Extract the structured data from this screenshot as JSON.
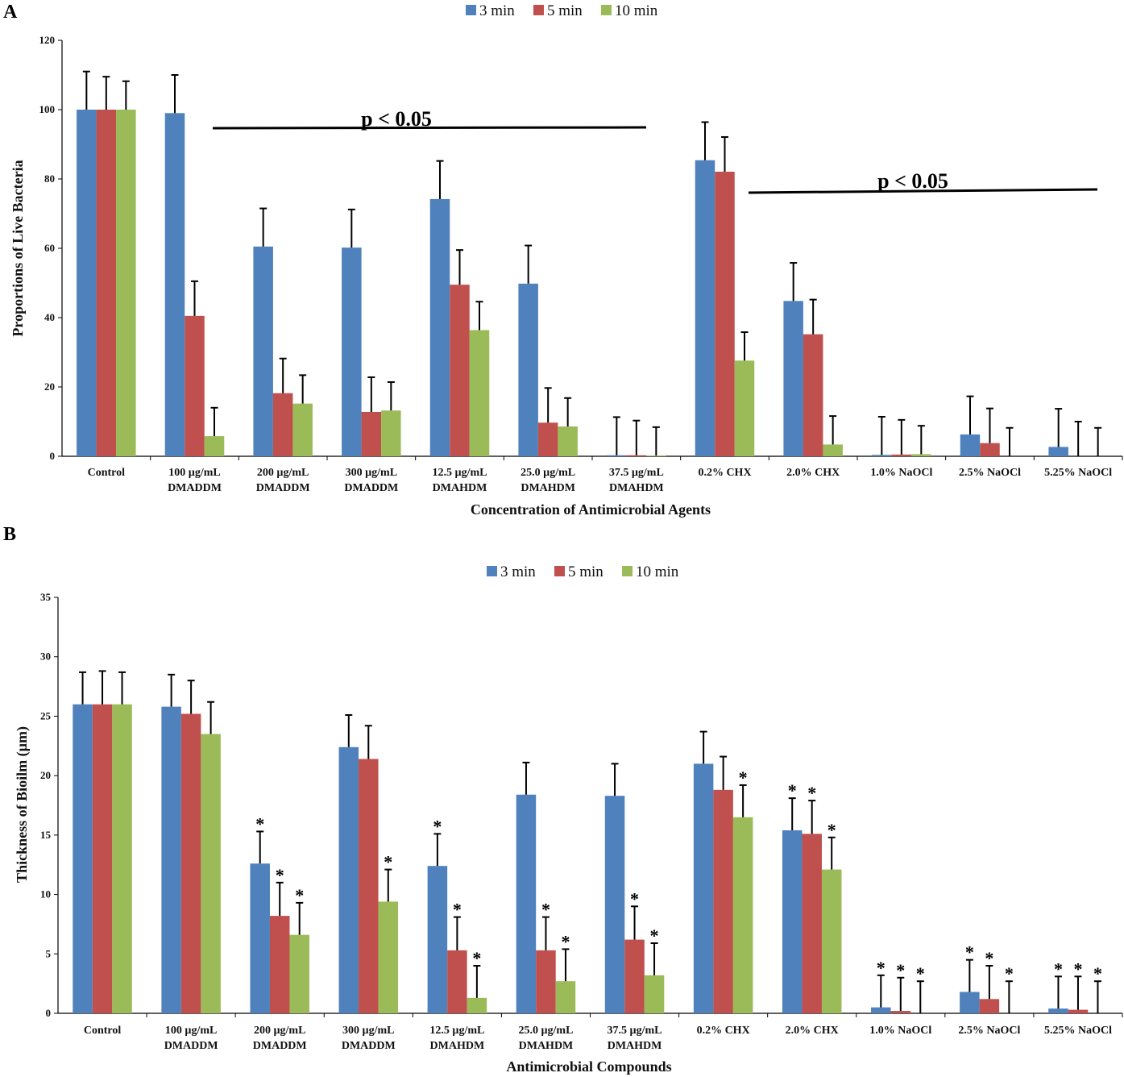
{
  "chart_data": [
    {
      "type": "bar",
      "panel": "A",
      "xlabel": "Concentration of Antimicrobial Agents",
      "ylabel": "Proportions of Live Bacteria",
      "ylim": [
        0,
        120
      ],
      "yticks": [
        0,
        20,
        40,
        60,
        80,
        100,
        120
      ],
      "categories": [
        [
          "Control"
        ],
        [
          "100 µg/mL",
          "DMADDM"
        ],
        [
          "200 µg/mL",
          "DMADDM"
        ],
        [
          "300 µg/mL",
          "DMADDM"
        ],
        [
          "12.5 µg/mL",
          "DMAHDM"
        ],
        [
          "25.0 µg/mL",
          "DMAHDM"
        ],
        [
          "37.5 µg/mL",
          "DMAHDM"
        ],
        [
          "0.2% CHX"
        ],
        [
          "2.0% CHX"
        ],
        [
          "1.0% NaOCl"
        ],
        [
          "2.5% NaOCl"
        ],
        [
          "5.25% NaOCl"
        ]
      ],
      "series": [
        {
          "name": "3 min",
          "color": "#4f81bd",
          "values": [
            100,
            99,
            60.5,
            60.2,
            74.2,
            49.8,
            0.3,
            85.4,
            44.8,
            0.4,
            6.3,
            2.7
          ],
          "errors": [
            11,
            11,
            11,
            11,
            11,
            11,
            11,
            11,
            11,
            11,
            11,
            11
          ]
        },
        {
          "name": "5 min",
          "color": "#c0504d",
          "values": [
            100,
            40.5,
            18.2,
            12.8,
            49.5,
            9.7,
            0.3,
            82.1,
            35.2,
            0.5,
            3.8,
            0
          ],
          "errors": [
            9.5,
            10,
            10,
            10,
            10,
            10,
            10,
            10,
            10,
            10,
            10,
            10
          ]
        },
        {
          "name": "10 min",
          "color": "#9bbb59",
          "values": [
            100,
            5.8,
            15.2,
            13.2,
            36.4,
            8.6,
            0.2,
            27.6,
            3.4,
            0.6,
            0,
            0
          ],
          "errors": [
            8.2,
            8.2,
            8.2,
            8.2,
            8.2,
            8.2,
            8.2,
            8.2,
            8.2,
            8.2,
            8.2,
            8.2
          ]
        }
      ],
      "annotations": [
        "p < 0.05",
        "p < 0.05"
      ]
    },
    {
      "type": "bar",
      "panel": "B",
      "xlabel": "Antimicrobial Compounds",
      "ylabel": "Thickness of Bioilm (µm)",
      "ylim": [
        0,
        35
      ],
      "yticks": [
        0,
        5,
        10,
        15,
        20,
        25,
        30,
        35
      ],
      "categories": [
        [
          "Control"
        ],
        [
          "100 µg/mL",
          "DMADDM"
        ],
        [
          "200 µg/mL",
          "DMADDM"
        ],
        [
          "300 µg/mL",
          "DMADDM"
        ],
        [
          "12.5 µg/mL",
          "DMAHDM"
        ],
        [
          "25.0 µg/mL",
          "DMAHDM"
        ],
        [
          "37.5 µg/mL",
          "DMAHDM"
        ],
        [
          "0.2% CHX"
        ],
        [
          "2.0% CHX"
        ],
        [
          "1.0% NaOCl"
        ],
        [
          "2.5% NaOCl"
        ],
        [
          "5.25% NaOCl"
        ]
      ],
      "series": [
        {
          "name": "3 min",
          "color": "#4f81bd",
          "values": [
            26,
            25.8,
            12.6,
            22.4,
            12.4,
            18.4,
            18.3,
            21,
            15.4,
            0.5,
            1.8,
            0.4
          ],
          "errors": [
            2.7,
            2.7,
            2.7,
            2.7,
            2.7,
            2.7,
            2.7,
            2.7,
            2.7,
            2.7,
            2.7,
            2.7
          ],
          "stars": [
            false,
            false,
            true,
            false,
            true,
            false,
            false,
            false,
            true,
            true,
            true,
            true
          ]
        },
        {
          "name": "5 min",
          "color": "#c0504d",
          "values": [
            26,
            25.2,
            8.2,
            21.4,
            5.3,
            5.3,
            6.2,
            18.8,
            15.1,
            0.2,
            1.2,
            0.3
          ],
          "errors": [
            2.8,
            2.8,
            2.8,
            2.8,
            2.8,
            2.8,
            2.8,
            2.8,
            2.8,
            2.8,
            2.8,
            2.8
          ],
          "stars": [
            false,
            false,
            true,
            false,
            true,
            true,
            true,
            false,
            true,
            true,
            true,
            true
          ]
        },
        {
          "name": "10 min",
          "color": "#9bbb59",
          "values": [
            26,
            23.5,
            6.6,
            9.4,
            1.3,
            2.7,
            3.2,
            16.5,
            12.1,
            0,
            0,
            0
          ],
          "errors": [
            2.7,
            2.7,
            2.7,
            2.7,
            2.7,
            2.7,
            2.7,
            2.7,
            2.7,
            2.7,
            2.7,
            2.7
          ],
          "stars": [
            false,
            false,
            true,
            true,
            true,
            true,
            true,
            true,
            true,
            true,
            true,
            true
          ]
        }
      ]
    }
  ]
}
